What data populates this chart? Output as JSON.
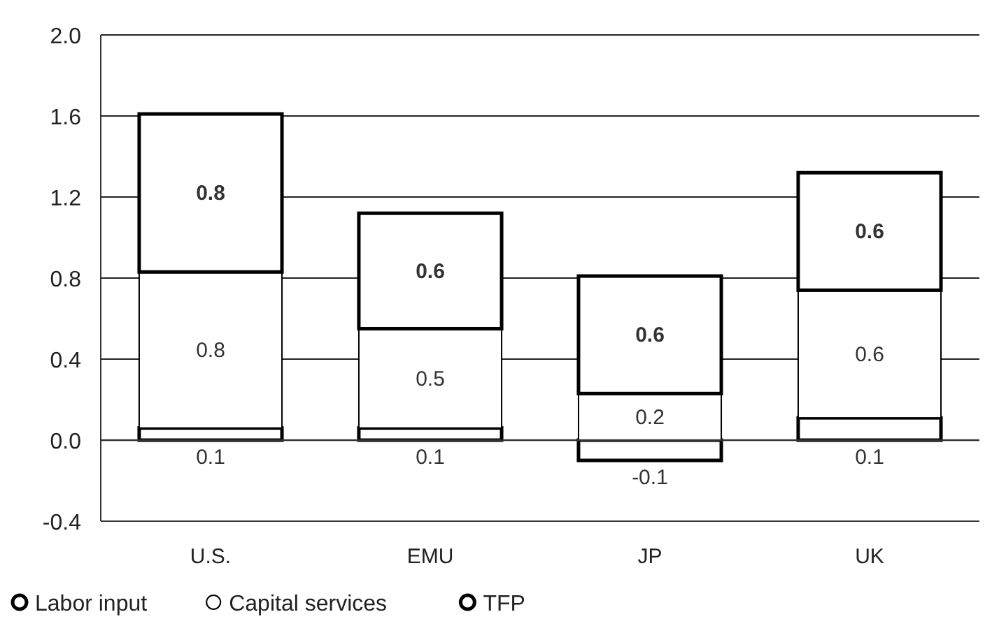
{
  "chart_data": {
    "type": "bar",
    "stacked": true,
    "categories": [
      "U.S.",
      "EMU",
      "JP",
      "UK"
    ],
    "series": [
      {
        "name": "Labor input",
        "color": "#ffffff",
        "values": [
          0.06,
          0.06,
          -0.1,
          0.11
        ],
        "value_labels": [
          "0.1",
          "0.1",
          "-0.1",
          "0.1"
        ]
      },
      {
        "name": "Capital services",
        "color": "#ffffff",
        "values": [
          0.77,
          0.49,
          0.23,
          0.63
        ],
        "value_labels": [
          "0.8",
          "0.5",
          "0.2",
          "0.6"
        ]
      },
      {
        "name": "TFP",
        "color": "#ffffff",
        "values": [
          0.78,
          0.57,
          0.58,
          0.58
        ],
        "value_labels": [
          "0.8",
          "0.6",
          "0.6",
          "0.6"
        ]
      }
    ],
    "ylim": [
      -0.4,
      2.0
    ],
    "yticks": [
      {
        "value": -0.4,
        "label": "-0.4"
      },
      {
        "value": 0,
        "label": "0.0"
      },
      {
        "value": 0.4,
        "label": "0.4"
      },
      {
        "value": 0.8,
        "label": "0.8"
      },
      {
        "value": 1.2,
        "label": "1.2"
      },
      {
        "value": 1.6,
        "label": "1.6"
      },
      {
        "value": 2,
        "label": "2.0"
      }
    ],
    "grid": "y",
    "legend": "bottom left"
  }
}
